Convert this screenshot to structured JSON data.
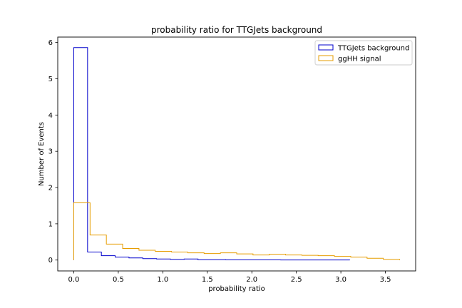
{
  "chart_data": {
    "type": "step-histogram",
    "title": "probability ratio for TTGJets background",
    "xlabel": "probability ratio",
    "ylabel": "Number of Events",
    "xlim": [
      -0.18,
      3.84
    ],
    "ylim": [
      -0.3,
      6.15
    ],
    "xticks": [
      0.0,
      0.5,
      1.0,
      1.5,
      2.0,
      2.5,
      3.0,
      3.5
    ],
    "xtick_labels": [
      "0.0",
      "0.5",
      "1.0",
      "1.5",
      "2.0",
      "2.5",
      "3.0",
      "3.5"
    ],
    "yticks": [
      0,
      1,
      2,
      3,
      4,
      5,
      6
    ],
    "ytick_labels": [
      "0",
      "1",
      "2",
      "3",
      "4",
      "5",
      "6"
    ],
    "legend_position": "top-right",
    "series": [
      {
        "name": "TTGJets background",
        "color": "#0000cc",
        "bin_edges": [
          0.0,
          0.155,
          0.31,
          0.465,
          0.62,
          0.775,
          0.93,
          1.085,
          1.24,
          1.395,
          1.55,
          1.705,
          1.86,
          2.015,
          2.17,
          2.325,
          2.48,
          2.635,
          2.79,
          2.945,
          3.1
        ],
        "values": [
          5.86,
          0.22,
          0.12,
          0.08,
          0.06,
          0.04,
          0.03,
          0.02,
          0.03,
          0.01,
          0.01,
          0.005,
          0.005,
          0.005,
          0.005,
          0.003,
          0.003,
          0.002,
          0.002,
          0.002
        ]
      },
      {
        "name": "ggHH signal",
        "color": "#e69d00",
        "bin_edges": [
          0.0,
          0.183,
          0.366,
          0.549,
          0.732,
          0.915,
          1.098,
          1.281,
          1.464,
          1.647,
          1.83,
          2.013,
          2.196,
          2.379,
          2.562,
          2.745,
          2.928,
          3.111,
          3.294,
          3.477,
          3.66
        ],
        "values": [
          1.58,
          0.69,
          0.44,
          0.32,
          0.27,
          0.24,
          0.22,
          0.2,
          0.18,
          0.2,
          0.17,
          0.14,
          0.16,
          0.14,
          0.13,
          0.12,
          0.1,
          0.08,
          0.05,
          0.02
        ]
      }
    ]
  }
}
